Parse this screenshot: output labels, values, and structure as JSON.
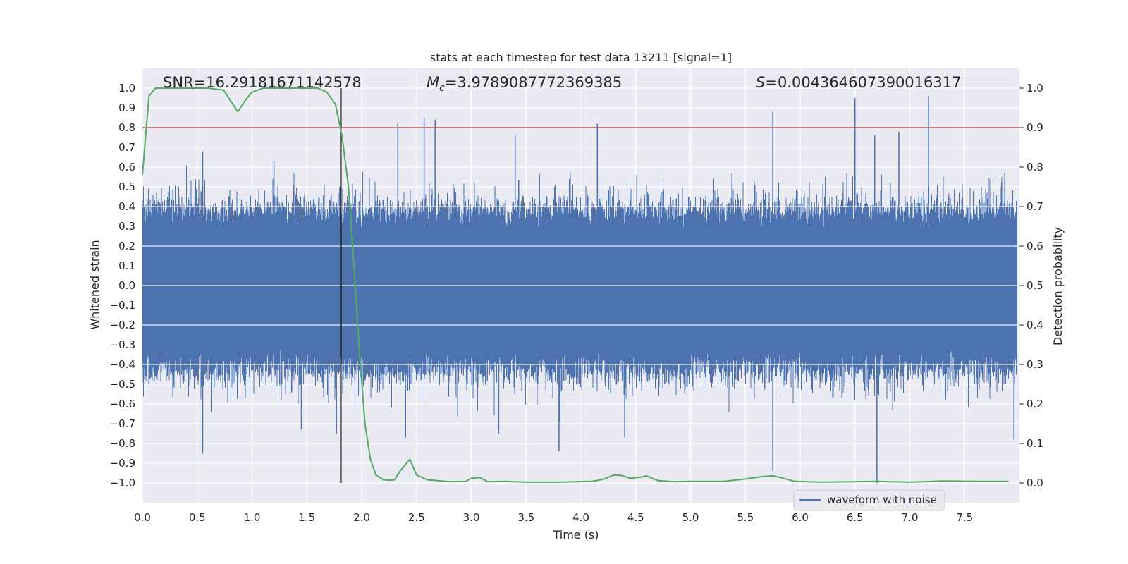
{
  "chart_data": {
    "type": "line",
    "title": "stats at each timestep for test data 13211 [signal=1]",
    "xlabel": "Time (s)",
    "ylabel": "Whitened strain",
    "y2label": "Detection probability",
    "xlim": [
      0.0,
      8.0
    ],
    "ylim": [
      -1.1,
      1.1
    ],
    "y2lim": [
      -0.05,
      1.05
    ],
    "x_ticks": [
      "0.0",
      "0.5",
      "1.0",
      "1.5",
      "2.0",
      "2.5",
      "3.0",
      "3.5",
      "4.0",
      "4.5",
      "5.0",
      "5.5",
      "6.0",
      "6.5",
      "7.0",
      "7.5"
    ],
    "y_ticks": [
      "1.0",
      "0.9",
      "0.8",
      "0.7",
      "0.6",
      "0.5",
      "0.4",
      "0.3",
      "0.2",
      "0.1",
      "0.0",
      "−0.1",
      "−0.2",
      "−0.3",
      "−0.4",
      "−0.5",
      "−0.6",
      "−0.7",
      "−0.8",
      "−0.9",
      "−1.0"
    ],
    "y2_ticks": [
      "1.0",
      "0.9",
      "0.8",
      "0.7",
      "0.6",
      "0.5",
      "0.4",
      "0.3",
      "0.2",
      "0.1",
      "0.0"
    ],
    "annotations": {
      "snr": "SNR=16.29181671142578",
      "mc_symbol": "M",
      "mc_sub": "c",
      "mc_value": "=3.9789087772369385",
      "s_symbol": "S",
      "s_value": "=0.004364607390016317"
    },
    "threshold": 0.9,
    "vline_x": 1.81,
    "legend": {
      "label": "waveform with noise",
      "position": "lower-right"
    },
    "waveform": {
      "name": "waveform with noise",
      "color": "#4c72b0",
      "band_upper_typical": 0.33,
      "band_lower_typical": -0.37,
      "peaks_pos": [
        {
          "x": 0.55,
          "y": 0.68
        },
        {
          "x": 1.2,
          "y": 0.63
        },
        {
          "x": 1.8,
          "y": 0.5
        },
        {
          "x": 2.33,
          "y": 0.83
        },
        {
          "x": 2.57,
          "y": 0.85
        },
        {
          "x": 2.67,
          "y": 0.84
        },
        {
          "x": 3.4,
          "y": 0.76
        },
        {
          "x": 4.15,
          "y": 0.82
        },
        {
          "x": 5.75,
          "y": 0.88
        },
        {
          "x": 6.5,
          "y": 0.95
        },
        {
          "x": 6.68,
          "y": 0.76
        },
        {
          "x": 6.9,
          "y": 0.78
        },
        {
          "x": 7.17,
          "y": 0.96
        }
      ],
      "peaks_neg": [
        {
          "x": 0.55,
          "y": -0.85
        },
        {
          "x": 1.45,
          "y": -0.73
        },
        {
          "x": 1.77,
          "y": -0.75
        },
        {
          "x": 2.4,
          "y": -0.77
        },
        {
          "x": 3.25,
          "y": -0.75
        },
        {
          "x": 3.8,
          "y": -0.84
        },
        {
          "x": 4.4,
          "y": -0.77
        },
        {
          "x": 5.75,
          "y": -0.94
        },
        {
          "x": 6.7,
          "y": -1.0
        },
        {
          "x": 7.95,
          "y": -0.78
        }
      ]
    },
    "detection_probability": {
      "color": "#55a868",
      "x": [
        0.0,
        0.06,
        0.12,
        0.2,
        0.4,
        0.6,
        0.74,
        0.8,
        0.87,
        0.94,
        1.0,
        1.1,
        1.3,
        1.5,
        1.6,
        1.68,
        1.76,
        1.82,
        1.88,
        1.93,
        1.98,
        2.03,
        2.08,
        2.13,
        2.2,
        2.25,
        2.3,
        2.35,
        2.44,
        2.5,
        2.6,
        2.8,
        2.95,
        3.0,
        3.08,
        3.15,
        3.3,
        3.5,
        3.8,
        4.1,
        4.2,
        4.3,
        4.37,
        4.45,
        4.55,
        4.6,
        4.7,
        4.85,
        5.0,
        5.3,
        5.5,
        5.65,
        5.75,
        5.82,
        5.95,
        6.2,
        6.5,
        6.7,
        7.0,
        7.3,
        7.6,
        7.9
      ],
      "y": [
        0.78,
        0.98,
        1.0,
        1.0,
        1.0,
        1.0,
        0.995,
        0.97,
        0.94,
        0.97,
        0.99,
        1.0,
        1.0,
        1.0,
        1.0,
        0.99,
        0.96,
        0.88,
        0.75,
        0.55,
        0.33,
        0.15,
        0.06,
        0.02,
        0.008,
        0.007,
        0.008,
        0.03,
        0.06,
        0.02,
        0.008,
        0.003,
        0.004,
        0.012,
        0.014,
        0.003,
        0.004,
        0.002,
        0.002,
        0.004,
        0.009,
        0.02,
        0.019,
        0.012,
        0.015,
        0.018,
        0.006,
        0.003,
        0.004,
        0.004,
        0.01,
        0.016,
        0.018,
        0.014,
        0.004,
        0.002,
        0.003,
        0.004,
        0.002,
        0.005,
        0.004,
        0.004
      ]
    },
    "colors": {
      "axes_bg": "#eaeaf2",
      "grid": "#ffffff",
      "threshold": "#c44e52",
      "vline": "#000000"
    }
  }
}
